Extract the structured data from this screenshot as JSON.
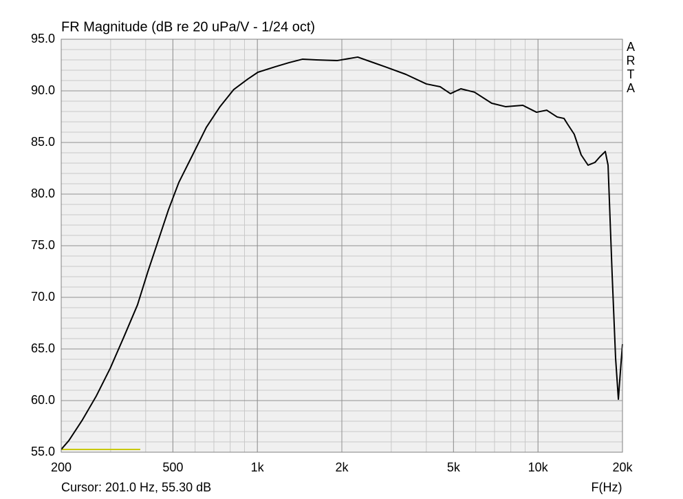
{
  "chart_data": {
    "type": "line",
    "title": "FR Magnitude (dB re 20 uPa/V - 1/24 oct)",
    "side_label": "ARTA",
    "cursor_label": "Cursor: 201.0 Hz, 55.30 dB",
    "x_label": "F(Hz)",
    "xscale": "log",
    "grid": true,
    "minor_grid": true,
    "color": "#000000",
    "xlim": [
      200,
      20000
    ],
    "xticks": [
      200,
      500,
      {
        "value": 1000,
        "label": "1k"
      },
      {
        "value": 2000,
        "label": "2k"
      },
      {
        "value": 5000,
        "label": "5k"
      },
      {
        "value": 10000,
        "label": "10k"
      },
      {
        "value": 20000,
        "label": "20k"
      }
    ],
    "ylim": [
      55,
      95
    ],
    "yticks": [
      {
        "value": 55,
        "label": "55.0"
      },
      {
        "value": 60,
        "label": "60.0"
      },
      {
        "value": 65,
        "label": "65.0"
      },
      {
        "value": 70,
        "label": "70.0"
      },
      {
        "value": 75,
        "label": "75.0"
      },
      {
        "value": 80,
        "label": "80.0"
      },
      {
        "value": 85,
        "label": "85.0"
      },
      {
        "value": 90,
        "label": "90.0"
      },
      {
        "value": 95,
        "label": "95.0"
      }
    ],
    "x": [
      200,
      213,
      238,
      267,
      299,
      334,
      374,
      407,
      443,
      482,
      525,
      588,
      658,
      736,
      824,
      923,
      1004,
      1156,
      1295,
      1450,
      1623,
      1922,
      2278,
      2550,
      2855,
      3380,
      4000,
      4480,
      4875,
      5310,
      5940,
      6840,
      7660,
      8830,
      9880,
      10740,
      11700,
      12380,
      12730,
      13460,
      14250,
      15080,
      15960,
      16600,
      17370,
      17770,
      18380,
      18900,
      19340,
      19660,
      20000
    ],
    "values": [
      55.27,
      56.13,
      58.13,
      60.47,
      63.13,
      66.13,
      69.27,
      72.47,
      75.47,
      78.47,
      81.13,
      83.8,
      86.47,
      88.47,
      90.13,
      91.13,
      91.8,
      92.33,
      92.73,
      93.07,
      93.0,
      92.93,
      93.27,
      92.8,
      92.33,
      91.6,
      90.67,
      90.4,
      89.73,
      90.2,
      89.87,
      88.8,
      88.47,
      88.6,
      87.93,
      88.13,
      87.47,
      87.33,
      86.8,
      85.8,
      83.8,
      82.8,
      83.07,
      83.6,
      84.13,
      82.8,
      72.13,
      64.13,
      60.13,
      62.8,
      65.47
    ]
  }
}
